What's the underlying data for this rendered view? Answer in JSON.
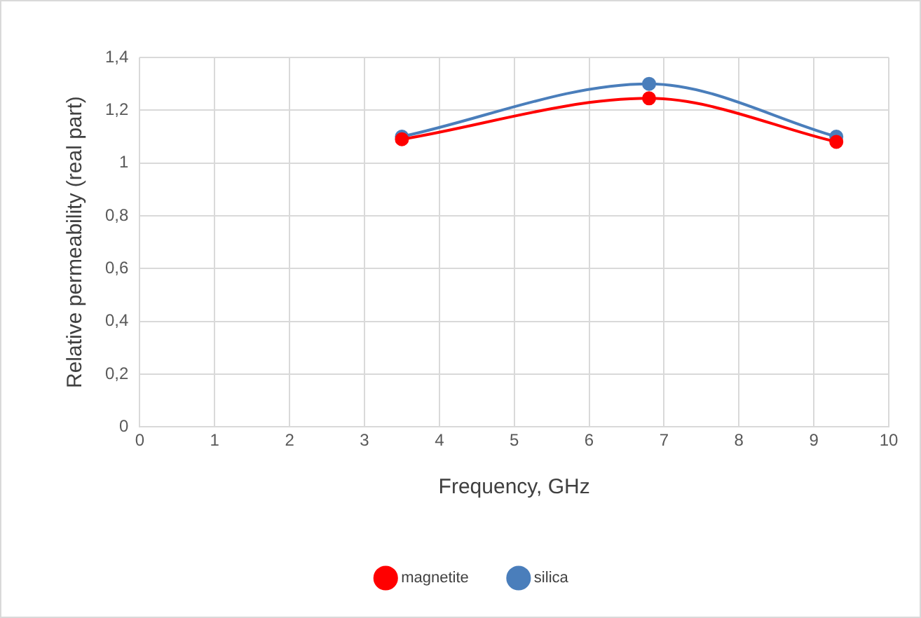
{
  "chart_data": {
    "type": "line",
    "xlabel": "Frequency, GHz",
    "ylabel": "Relative permeability (real part)",
    "xlim": [
      0,
      10
    ],
    "xticks": [
      0,
      1,
      2,
      3,
      4,
      5,
      6,
      7,
      8,
      9,
      10
    ],
    "ylim": [
      0,
      1.4
    ],
    "yticks": [
      0,
      {
        "value": 0.2,
        "label": "0,2"
      },
      {
        "value": 0.4,
        "label": "0,4"
      },
      {
        "value": 0.6,
        "label": "0,6"
      },
      {
        "value": 0.8,
        "label": "0,8"
      },
      1,
      {
        "value": 1.2,
        "label": "1,2"
      },
      {
        "value": 1.4,
        "label": "1,4"
      }
    ],
    "series": [
      {
        "name": "silica",
        "color": "#4a7ebb",
        "x": [
          3.5,
          6.8,
          9.3
        ],
        "values": [
          1.1,
          1.3,
          1.1
        ]
      },
      {
        "name": "magnetite",
        "color": "#ff0000",
        "x": [
          3.5,
          6.8,
          9.3
        ],
        "values": [
          1.09,
          1.245,
          1.08
        ]
      }
    ],
    "grid": true,
    "legend": "bottom",
    "marker": "circle",
    "line_style": "solid"
  }
}
